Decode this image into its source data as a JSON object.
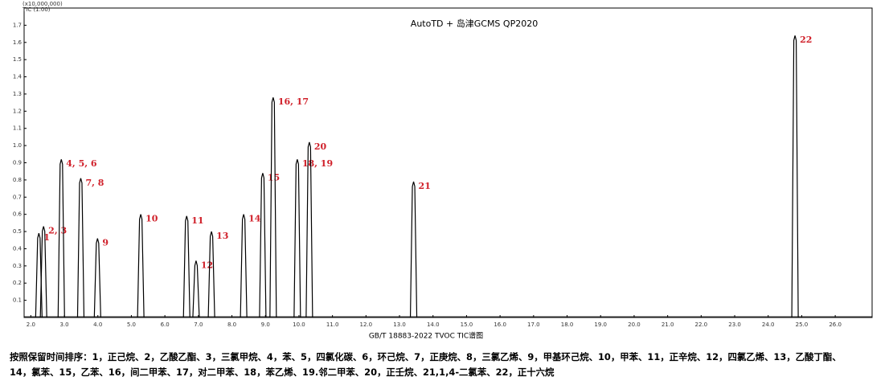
{
  "chart_data": {
    "type": "peaks",
    "title": "AutoTD + 岛津GCMS QP2020",
    "y_unit": "(x10,000,000)",
    "y_label": "TIC (1.00)",
    "x_label": "GB/T 18883-2022  TVOC TIC谱图",
    "x": [
      2.24,
      2.38,
      2.91,
      3.49,
      3.99,
      5.28,
      6.65,
      6.93,
      7.39,
      8.35,
      8.92,
      9.23,
      9.95,
      10.31,
      13.42,
      24.8
    ],
    "values": [
      0.49,
      0.53,
      0.92,
      0.81,
      0.46,
      0.6,
      0.59,
      0.33,
      0.5,
      0.6,
      0.84,
      1.28,
      0.92,
      1.02,
      0.79,
      1.64
    ],
    "point_labels": [
      "1",
      "2, 3",
      "4, 5, 6",
      "7, 8",
      "9",
      "10",
      "11",
      "12",
      "13",
      "14",
      "15",
      "16, 17",
      "18, 19",
      "20",
      "21",
      "22"
    ],
    "color": "#000000",
    "label_color": "#d0202a",
    "xlim": [
      1.8,
      27.1
    ],
    "ylim": [
      0,
      1.8
    ],
    "xticks": [
      {
        "value": 2,
        "label": "2.0"
      },
      {
        "value": 3,
        "label": "3.0"
      },
      {
        "value": 4,
        "label": "4.0"
      },
      {
        "value": 5,
        "label": "5.0"
      },
      {
        "value": 6,
        "label": "6.0"
      },
      {
        "value": 7,
        "label": "7.0"
      },
      {
        "value": 8,
        "label": "8.0"
      },
      {
        "value": 9,
        "label": "9.0"
      },
      {
        "value": 10,
        "label": "10.0"
      },
      {
        "value": 11,
        "label": "11.0"
      },
      {
        "value": 12,
        "label": "12.0"
      },
      {
        "value": 13,
        "label": "13.0"
      },
      {
        "value": 14,
        "label": "14.0"
      },
      {
        "value": 15,
        "label": "15.0"
      },
      {
        "value": 16,
        "label": "16.0"
      },
      {
        "value": 17,
        "label": "17.0"
      },
      {
        "value": 18,
        "label": "18.0"
      },
      {
        "value": 19,
        "label": "19.0"
      },
      {
        "value": 20,
        "label": "20.0"
      },
      {
        "value": 21,
        "label": "21.0"
      },
      {
        "value": 22,
        "label": "22.0"
      },
      {
        "value": 23,
        "label": "23.0"
      },
      {
        "value": 24,
        "label": "24.0"
      },
      {
        "value": 25,
        "label": "25.0"
      },
      {
        "value": 26,
        "label": "26.0"
      }
    ],
    "yticks": [
      0.1,
      0.2,
      0.3,
      0.4,
      0.5,
      0.6,
      0.7,
      0.8,
      0.9,
      {
        "value": 1,
        "label": "1.0"
      },
      1.1,
      1.2,
      1.3,
      1.4,
      1.5,
      1.6,
      1.7
    ],
    "caption": [
      "按照保留时间排序：1，正己烷、2，乙酸乙酯、3，三氯甲烷、4，苯、5，四氯化碳、6，环己烷、7，正庚烷、8，三氯乙烯、9，甲基环己烷、10，甲苯、11，正辛烷、12，四氯乙烯、13，乙酸丁酯、",
      "14，氯苯、15，乙苯、16，间二甲苯、17，对二甲苯、18，苯乙烯、19.邻二甲苯、20，正壬烷、21,1,4-二氯苯、22，正十六烷"
    ]
  }
}
